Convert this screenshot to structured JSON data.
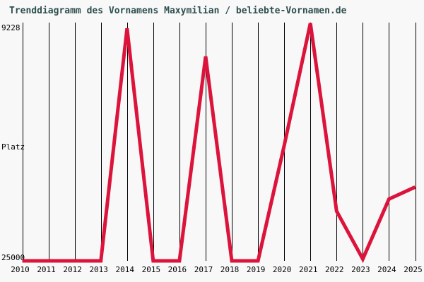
{
  "chart_data": {
    "type": "line",
    "title": "Trenddiagramm des Vornamens Maxymilian / beliebte-Vornamen.de",
    "ylabel": "Platz",
    "y_inverted": true,
    "ylim": [
      9228,
      25000
    ],
    "y_tick_labels": [
      "9228",
      "25000"
    ],
    "x": [
      "2010",
      "2011",
      "2012",
      "2013",
      "2014",
      "2015",
      "2016",
      "2017",
      "2018",
      "2019",
      "2020",
      "2021",
      "2022",
      "2023",
      "2024",
      "2025"
    ],
    "series": [
      {
        "name": "Platz",
        "values": [
          25000,
          25000,
          25000,
          25000,
          9560,
          25000,
          25000,
          11430,
          25000,
          25000,
          17340,
          9228,
          21700,
          24880,
          20900,
          20100
        ]
      }
    ],
    "grid": "vertical",
    "legend": "none"
  },
  "colors": {
    "line": "#DC143C",
    "title": "#2F4F4F",
    "background": "#F8F8F8",
    "grid": "#000000",
    "axis_text": "#000000"
  }
}
